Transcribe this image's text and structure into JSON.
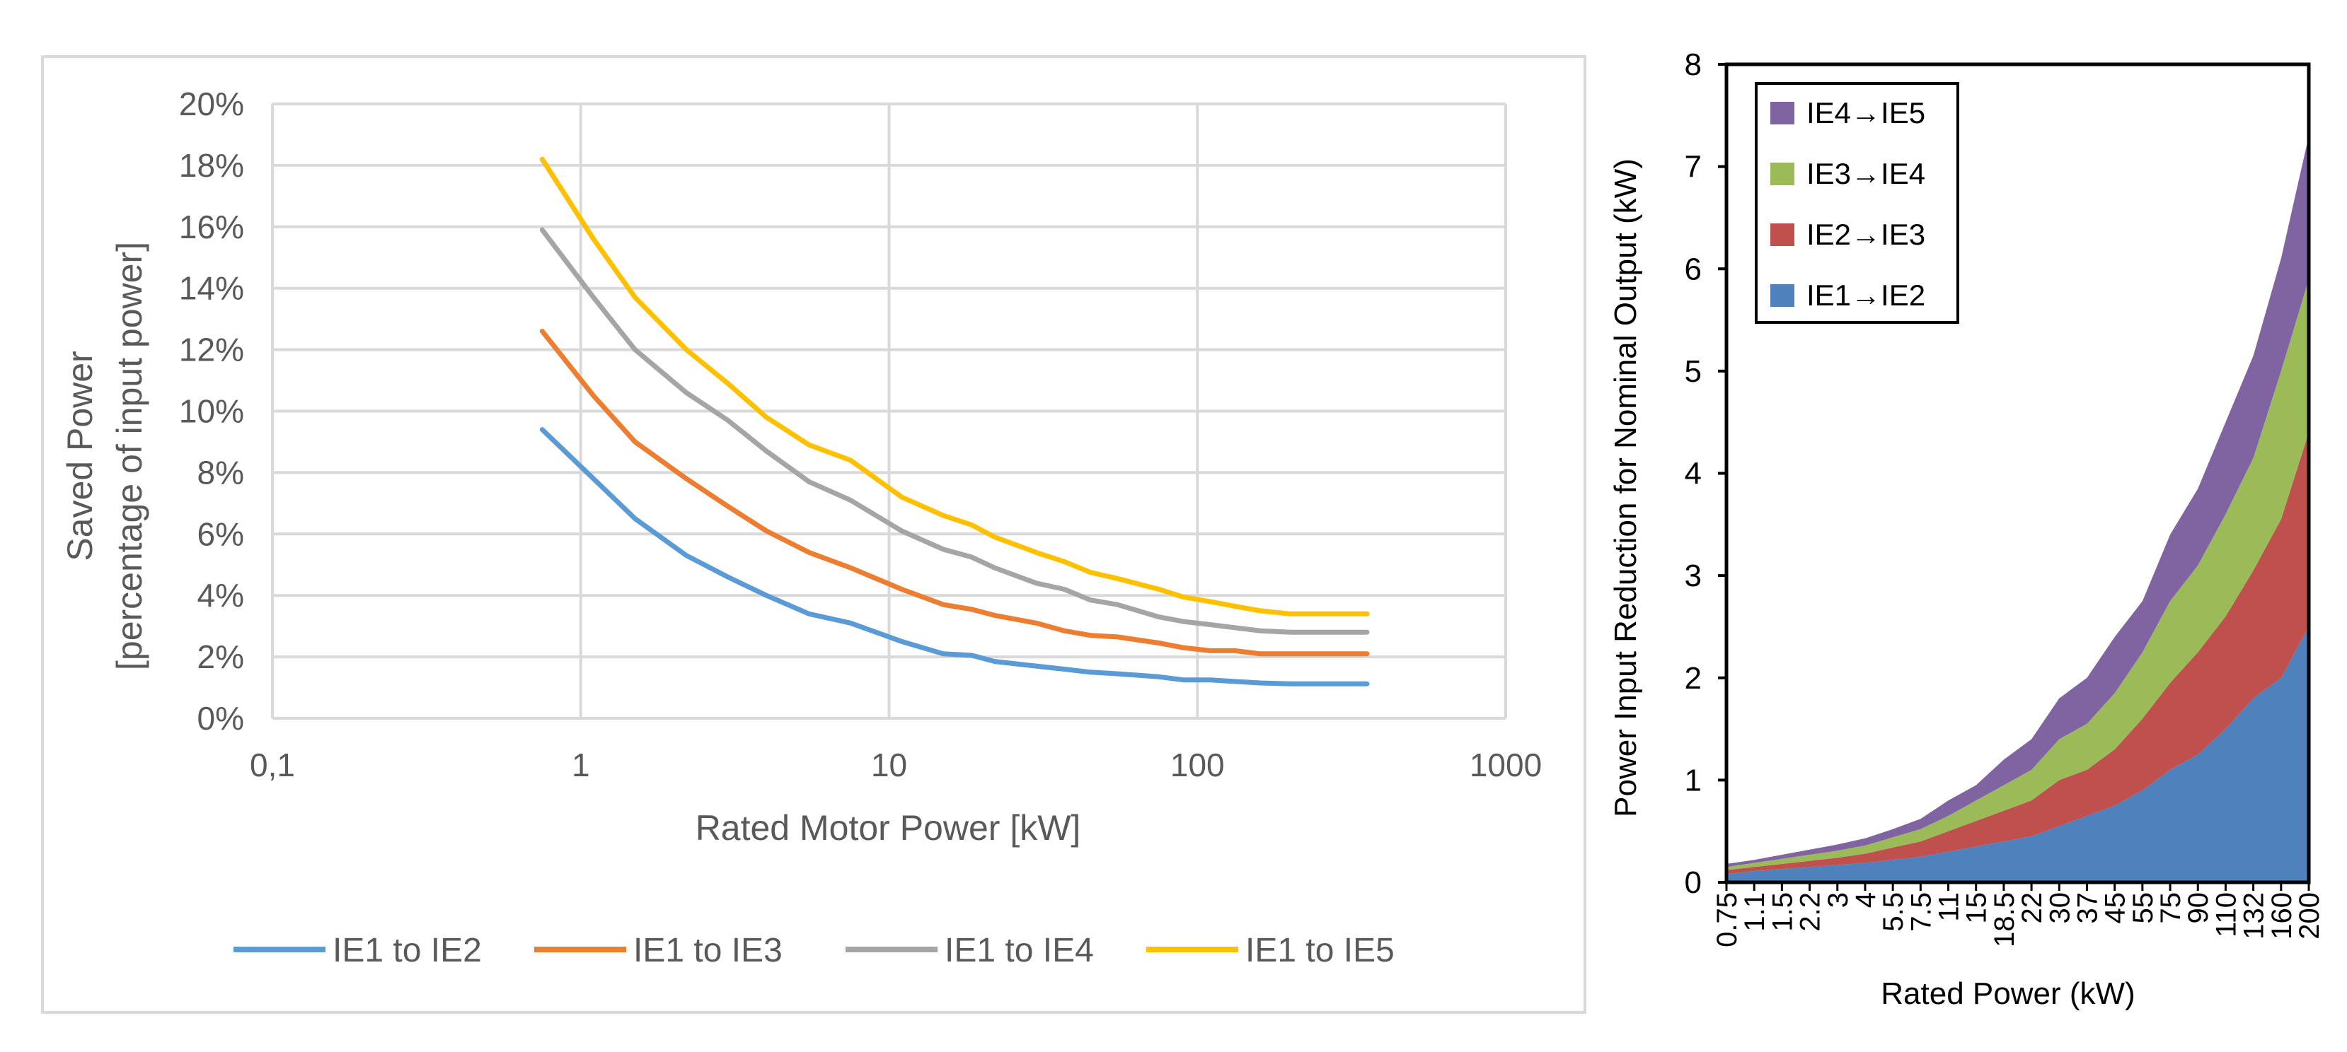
{
  "chart_data": [
    {
      "type": "line",
      "xscale": "log",
      "xlabel": "Rated Motor Power [kW]",
      "ylabel_line1": "Saved  Power",
      "ylabel_line2": "[percentage of input power]",
      "xlim": [
        0.1,
        1000
      ],
      "ylim": [
        0,
        20
      ],
      "x_ticks": [
        {
          "value": 0.1,
          "label": "0,1"
        },
        {
          "value": 1,
          "label": "1"
        },
        {
          "value": 10,
          "label": "10"
        },
        {
          "value": 100,
          "label": "100"
        },
        {
          "value": 1000,
          "label": "1000"
        }
      ],
      "y_ticks": [
        {
          "value": 0,
          "label": "0%"
        },
        {
          "value": 2,
          "label": "2%"
        },
        {
          "value": 4,
          "label": "4%"
        },
        {
          "value": 6,
          "label": "6%"
        },
        {
          "value": 8,
          "label": "8%"
        },
        {
          "value": 10,
          "label": "10%"
        },
        {
          "value": 12,
          "label": "12%"
        },
        {
          "value": 14,
          "label": "14%"
        },
        {
          "value": 16,
          "label": "16%"
        },
        {
          "value": 18,
          "label": "18%"
        },
        {
          "value": 20,
          "label": "20%"
        }
      ],
      "grid": true,
      "legend_position": "bottom",
      "x": [
        0.75,
        1.1,
        1.5,
        2.2,
        3,
        4,
        5.5,
        7.5,
        11,
        15,
        18.5,
        22,
        30,
        37,
        45,
        55,
        75,
        90,
        110,
        132,
        160,
        200,
        250,
        315,
        355
      ],
      "series": [
        {
          "name": "IE1 to IE2",
          "color": "#5B9BD5",
          "values": [
            9.4,
            7.8,
            6.5,
            5.3,
            4.6,
            4.0,
            3.4,
            3.1,
            2.5,
            2.1,
            2.05,
            1.85,
            1.7,
            1.6,
            1.5,
            1.45,
            1.35,
            1.25,
            1.25,
            1.2,
            1.15,
            1.12,
            1.12,
            1.12,
            1.12
          ]
        },
        {
          "name": "IE1 to IE3",
          "color": "#ED7D31",
          "values": [
            12.6,
            10.5,
            9.0,
            7.8,
            6.9,
            6.1,
            5.4,
            4.9,
            4.2,
            3.7,
            3.55,
            3.35,
            3.1,
            2.85,
            2.7,
            2.65,
            2.45,
            2.3,
            2.2,
            2.2,
            2.1,
            2.1,
            2.1,
            2.1,
            2.1
          ]
        },
        {
          "name": "IE1 to IE4",
          "color": "#A5A5A5",
          "values": [
            15.9,
            13.7,
            12.0,
            10.6,
            9.7,
            8.7,
            7.7,
            7.1,
            6.1,
            5.5,
            5.25,
            4.9,
            4.4,
            4.2,
            3.85,
            3.7,
            3.3,
            3.15,
            3.05,
            2.95,
            2.85,
            2.8,
            2.8,
            2.8,
            2.8
          ]
        },
        {
          "name": "IE1 to IE5",
          "color": "#FFC000",
          "values": [
            18.2,
            15.6,
            13.7,
            12.0,
            10.9,
            9.8,
            8.9,
            8.4,
            7.2,
            6.6,
            6.3,
            5.9,
            5.4,
            5.1,
            4.75,
            4.55,
            4.2,
            3.95,
            3.8,
            3.65,
            3.5,
            3.4,
            3.4,
            3.4,
            3.4
          ]
        }
      ]
    },
    {
      "type": "area",
      "stacked": true,
      "xlabel": "Rated Power (kW)",
      "ylabel": "Power Input Reduction for Nominal Output (kW)",
      "ylim": [
        0,
        8
      ],
      "y_ticks": [
        0,
        1,
        2,
        3,
        4,
        5,
        6,
        7,
        8
      ],
      "grid": false,
      "legend_position": "top-left",
      "categories": [
        "0.75",
        "1.1",
        "1.5",
        "2.2",
        "3",
        "4",
        "5.5",
        "7.5",
        "11",
        "15",
        "18.5",
        "22",
        "30",
        "37",
        "45",
        "55",
        "75",
        "90",
        "110",
        "132",
        "160",
        "200"
      ],
      "series": [
        {
          "name": "IE1→IE2",
          "color": "#4F81BD",
          "values": [
            0.08,
            0.11,
            0.13,
            0.15,
            0.17,
            0.19,
            0.22,
            0.25,
            0.3,
            0.35,
            0.4,
            0.45,
            0.55,
            0.65,
            0.75,
            0.9,
            1.1,
            1.25,
            1.5,
            1.8,
            2.0,
            2.5
          ]
        },
        {
          "name": "IE2→IE3",
          "color": "#C0504D",
          "values": [
            0.04,
            0.04,
            0.05,
            0.06,
            0.07,
            0.09,
            0.12,
            0.15,
            0.2,
            0.25,
            0.3,
            0.35,
            0.45,
            0.45,
            0.55,
            0.7,
            0.85,
            1.0,
            1.1,
            1.25,
            1.55,
            1.9
          ]
        },
        {
          "name": "IE3→IE4",
          "color": "#9BBB59",
          "values": [
            0.03,
            0.04,
            0.05,
            0.06,
            0.07,
            0.08,
            0.1,
            0.12,
            0.15,
            0.2,
            0.25,
            0.3,
            0.4,
            0.45,
            0.55,
            0.65,
            0.8,
            0.85,
            1.0,
            1.1,
            1.45,
            1.5
          ]
        },
        {
          "name": "IE4→IE5",
          "color": "#8064A2",
          "values": [
            0.03,
            0.03,
            0.04,
            0.05,
            0.06,
            0.07,
            0.08,
            0.1,
            0.15,
            0.15,
            0.25,
            0.3,
            0.4,
            0.45,
            0.55,
            0.5,
            0.65,
            0.75,
            0.9,
            1.0,
            1.1,
            1.4
          ]
        }
      ]
    }
  ]
}
